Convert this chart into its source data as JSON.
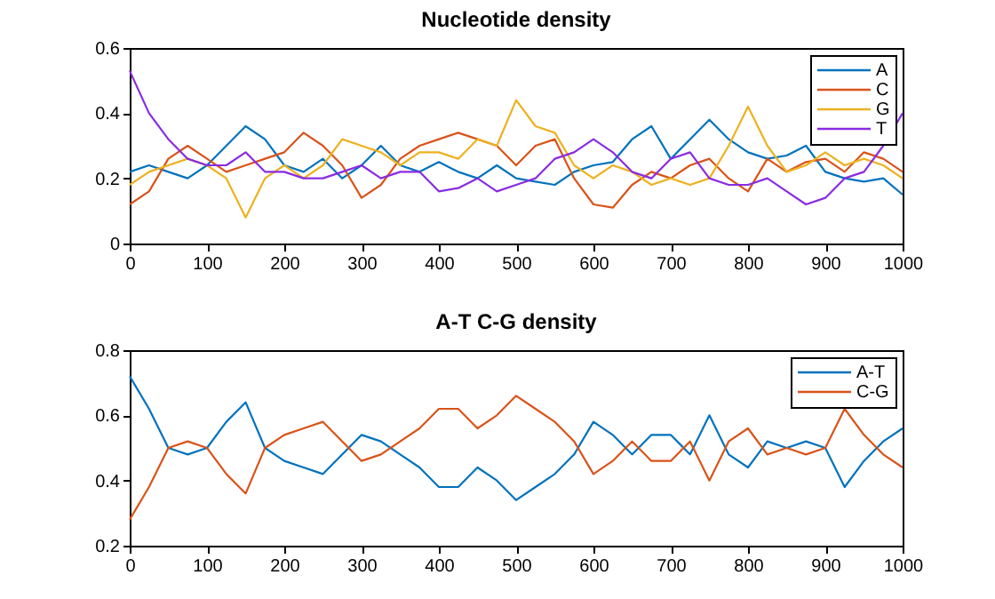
{
  "chart_data": [
    {
      "type": "line",
      "title": "Nucleotide density",
      "legend": "top right",
      "xlim": [
        0,
        1000
      ],
      "xticks": [
        0,
        100,
        200,
        300,
        400,
        500,
        600,
        700,
        800,
        900,
        1000
      ],
      "ylim": [
        0,
        0.6
      ],
      "yticks": [
        0,
        0.2,
        0.4,
        0.6
      ],
      "x": [
        0,
        25,
        50,
        75,
        100,
        125,
        150,
        175,
        200,
        225,
        250,
        275,
        300,
        325,
        350,
        375,
        400,
        425,
        450,
        475,
        500,
        525,
        550,
        575,
        600,
        625,
        650,
        675,
        700,
        725,
        750,
        775,
        800,
        825,
        850,
        875,
        900,
        925,
        950,
        975,
        1000
      ],
      "series": [
        {
          "name": "A",
          "color": "#0072bd",
          "values": [
            0.22,
            0.24,
            0.22,
            0.2,
            0.24,
            0.3,
            0.36,
            0.32,
            0.24,
            0.22,
            0.26,
            0.2,
            0.24,
            0.3,
            0.24,
            0.22,
            0.25,
            0.22,
            0.2,
            0.24,
            0.2,
            0.19,
            0.18,
            0.22,
            0.24,
            0.25,
            0.32,
            0.36,
            0.26,
            0.32,
            0.38,
            0.32,
            0.28,
            0.26,
            0.27,
            0.3,
            0.22,
            0.2,
            0.19,
            0.2,
            0.15
          ]
        },
        {
          "name": "C",
          "color": "#d95319",
          "values": [
            0.12,
            0.16,
            0.26,
            0.3,
            0.26,
            0.22,
            0.24,
            0.26,
            0.28,
            0.34,
            0.3,
            0.24,
            0.14,
            0.18,
            0.26,
            0.3,
            0.32,
            0.34,
            0.32,
            0.3,
            0.24,
            0.3,
            0.32,
            0.2,
            0.12,
            0.11,
            0.18,
            0.22,
            0.2,
            0.24,
            0.26,
            0.2,
            0.16,
            0.26,
            0.22,
            0.25,
            0.26,
            0.22,
            0.28,
            0.26,
            0.22
          ]
        },
        {
          "name": "G",
          "color": "#edb120",
          "values": [
            0.18,
            0.22,
            0.24,
            0.26,
            0.24,
            0.2,
            0.08,
            0.2,
            0.24,
            0.2,
            0.24,
            0.32,
            0.3,
            0.28,
            0.24,
            0.28,
            0.28,
            0.26,
            0.32,
            0.3,
            0.44,
            0.36,
            0.34,
            0.24,
            0.2,
            0.24,
            0.22,
            0.18,
            0.2,
            0.18,
            0.2,
            0.3,
            0.42,
            0.3,
            0.22,
            0.24,
            0.28,
            0.24,
            0.26,
            0.24,
            0.2
          ]
        },
        {
          "name": "T",
          "color": "#8a2be2",
          "values": [
            0.53,
            0.4,
            0.32,
            0.26,
            0.24,
            0.24,
            0.28,
            0.22,
            0.22,
            0.2,
            0.2,
            0.22,
            0.24,
            0.2,
            0.22,
            0.22,
            0.16,
            0.17,
            0.2,
            0.16,
            0.18,
            0.2,
            0.26,
            0.28,
            0.32,
            0.28,
            0.22,
            0.2,
            0.26,
            0.28,
            0.2,
            0.18,
            0.18,
            0.2,
            0.16,
            0.12,
            0.14,
            0.2,
            0.22,
            0.3,
            0.4
          ]
        }
      ]
    },
    {
      "type": "line",
      "title": "A-T C-G density",
      "legend": "top right",
      "xlim": [
        0,
        1000
      ],
      "xticks": [
        0,
        100,
        200,
        300,
        400,
        500,
        600,
        700,
        800,
        900,
        1000
      ],
      "ylim": [
        0.2,
        0.8
      ],
      "yticks": [
        0.2,
        0.4,
        0.6,
        0.8
      ],
      "x": [
        0,
        25,
        50,
        75,
        100,
        125,
        150,
        175,
        200,
        225,
        250,
        275,
        300,
        325,
        350,
        375,
        400,
        425,
        450,
        475,
        500,
        525,
        550,
        575,
        600,
        625,
        650,
        675,
        700,
        725,
        750,
        775,
        800,
        825,
        850,
        875,
        900,
        925,
        950,
        975,
        1000
      ],
      "series": [
        {
          "name": "A-T",
          "color": "#0072bd",
          "values": [
            0.72,
            0.62,
            0.5,
            0.48,
            0.5,
            0.58,
            0.64,
            0.5,
            0.46,
            0.44,
            0.42,
            0.48,
            0.54,
            0.52,
            0.48,
            0.44,
            0.38,
            0.38,
            0.44,
            0.4,
            0.34,
            0.38,
            0.42,
            0.48,
            0.58,
            0.54,
            0.48,
            0.54,
            0.54,
            0.48,
            0.6,
            0.48,
            0.44,
            0.52,
            0.5,
            0.52,
            0.5,
            0.38,
            0.46,
            0.52,
            0.56
          ]
        },
        {
          "name": "C-G",
          "color": "#d95319",
          "values": [
            0.28,
            0.38,
            0.5,
            0.52,
            0.5,
            0.42,
            0.36,
            0.5,
            0.54,
            0.56,
            0.58,
            0.52,
            0.46,
            0.48,
            0.52,
            0.56,
            0.62,
            0.62,
            0.56,
            0.6,
            0.66,
            0.62,
            0.58,
            0.52,
            0.42,
            0.46,
            0.52,
            0.46,
            0.46,
            0.52,
            0.4,
            0.52,
            0.56,
            0.48,
            0.5,
            0.48,
            0.5,
            0.62,
            0.54,
            0.48,
            0.44
          ]
        }
      ]
    }
  ]
}
